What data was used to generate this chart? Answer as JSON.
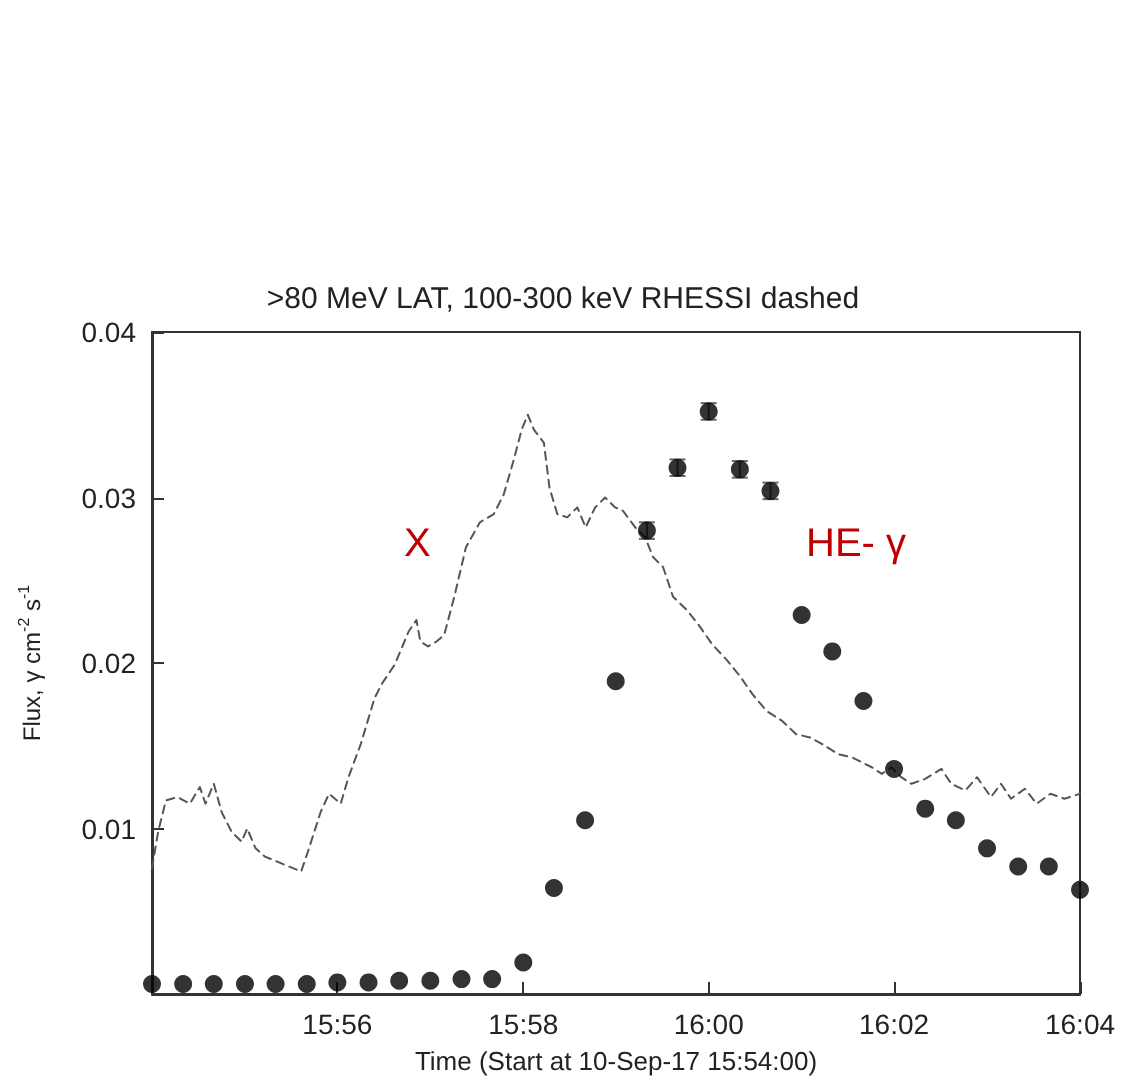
{
  "chart_data": {
    "type": "scatter",
    "title": ">80 MeV LAT, 100-300 keV RHESSI dashed",
    "xlabel": "Time (Start at 10-Sep-17 15:54:00)",
    "ylabel": "Flux, γ cm$^{-2}$ s$^{-1}$",
    "xlim": [
      15.9,
      16.0667
    ],
    "xticks": [
      {
        "value": 15.9333,
        "label": "15:56"
      },
      {
        "value": 15.9667,
        "label": "15:58"
      },
      {
        "value": 16,
        "label": "16:00"
      },
      {
        "value": 16.0333,
        "label": "16:02"
      },
      {
        "value": 16.0667,
        "label": "16:04"
      }
    ],
    "ylim": [
      0,
      0.04
    ],
    "yticks": [
      0.01,
      0.02,
      0.03,
      0.04
    ],
    "grid": false,
    "annotations": [
      "X",
      "HE- γ"
    ],
    "series": [
      {
        "type": "line",
        "line_style": "dashed",
        "marker": "none",
        "color": "#555555",
        "x": [
          15.9,
          15.9011,
          15.9025,
          15.9046,
          15.9068,
          15.9086,
          15.9096,
          15.9111,
          15.9125,
          15.9143,
          15.9161,
          15.9171,
          15.9186,
          15.9203,
          15.9225,
          15.9246,
          15.9268,
          15.9282,
          15.9303,
          15.9318,
          15.9339,
          15.9353,
          15.9375,
          15.94,
          15.9414,
          15.9436,
          15.9461,
          15.9475,
          15.9482,
          15.9496,
          15.9511,
          15.9525,
          15.9543,
          15.9564,
          15.9589,
          15.9614,
          15.9632,
          15.965,
          15.9664,
          15.9675,
          15.9686,
          15.9704,
          15.9714,
          15.9728,
          15.9746,
          15.9764,
          15.9779,
          15.9796,
          15.9814,
          15.9832,
          15.9846,
          15.9868,
          15.9886,
          15.99,
          15.9918,
          15.9936,
          15.9961,
          15.9982,
          16.0007,
          16.0032,
          16.0054,
          16.0079,
          16.0104,
          16.0132,
          16.0157,
          16.0182,
          16.0204,
          16.0232,
          16.0257,
          16.0293,
          16.0311,
          16.0328,
          16.0346,
          16.0364,
          16.0389,
          16.0418,
          16.0436,
          16.0461,
          16.0482,
          16.0507,
          16.0525,
          16.0543,
          16.0568,
          16.0589,
          16.0614,
          16.0639,
          16.0667
        ],
        "values": [
          0.0076,
          0.0098,
          0.0117,
          0.0119,
          0.0115,
          0.0125,
          0.0115,
          0.0127,
          0.011,
          0.0098,
          0.0092,
          0.01,
          0.0088,
          0.0083,
          0.008,
          0.0077,
          0.0074,
          0.0088,
          0.011,
          0.0121,
          0.0115,
          0.0131,
          0.0151,
          0.0179,
          0.0188,
          0.0199,
          0.0219,
          0.0226,
          0.0213,
          0.021,
          0.0213,
          0.0217,
          0.024,
          0.027,
          0.0285,
          0.029,
          0.0302,
          0.0323,
          0.0341,
          0.035,
          0.0341,
          0.0333,
          0.0306,
          0.029,
          0.0288,
          0.0294,
          0.0282,
          0.0294,
          0.03,
          0.0294,
          0.0292,
          0.0282,
          0.0276,
          0.0264,
          0.0258,
          0.024,
          0.0232,
          0.0223,
          0.0211,
          0.0202,
          0.0193,
          0.0181,
          0.0171,
          0.0165,
          0.0157,
          0.0155,
          0.0151,
          0.0145,
          0.0143,
          0.0137,
          0.0133,
          0.0137,
          0.0131,
          0.0127,
          0.013,
          0.0136,
          0.0127,
          0.0123,
          0.0131,
          0.0119,
          0.0127,
          0.0118,
          0.0124,
          0.0115,
          0.0121,
          0.0118,
          0.0121
        ]
      },
      {
        "marker": "circle",
        "color": "#000000",
        "x": [
          15.9,
          15.9056,
          15.9111,
          15.9167,
          15.9222,
          15.9278,
          15.9333,
          15.9389,
          15.9444,
          15.95,
          15.9556,
          15.9611,
          15.9667,
          15.9722,
          15.9778,
          15.9833,
          15.9889,
          15.9944,
          16,
          16.0056,
          16.0111,
          16.0167,
          16.0222,
          16.0278,
          16.0333,
          16.0389,
          16.0444,
          16.05,
          16.0556,
          16.0611,
          16.0667
        ],
        "values": [
          0.0006,
          0.0006,
          0.0006,
          0.0006,
          0.0006,
          0.0006,
          0.0007,
          0.0007,
          0.0008,
          0.0008,
          0.0009,
          0.0009,
          0.0019,
          0.0064,
          0.0105,
          0.0189,
          0.028,
          0.0318,
          0.0352,
          0.0317,
          0.0304,
          0.0229,
          0.0207,
          0.0177,
          0.0136,
          0.0112,
          0.0105,
          0.0088,
          0.0077,
          0.0077,
          0.0063
        ],
        "errors": [
          null,
          null,
          null,
          null,
          null,
          null,
          null,
          null,
          null,
          null,
          null,
          null,
          null,
          null,
          null,
          null,
          0.0005,
          0.0005,
          0.0005,
          0.0005,
          0.0005,
          null,
          null,
          null,
          null,
          null,
          null,
          null,
          null,
          null,
          null
        ]
      }
    ]
  }
}
